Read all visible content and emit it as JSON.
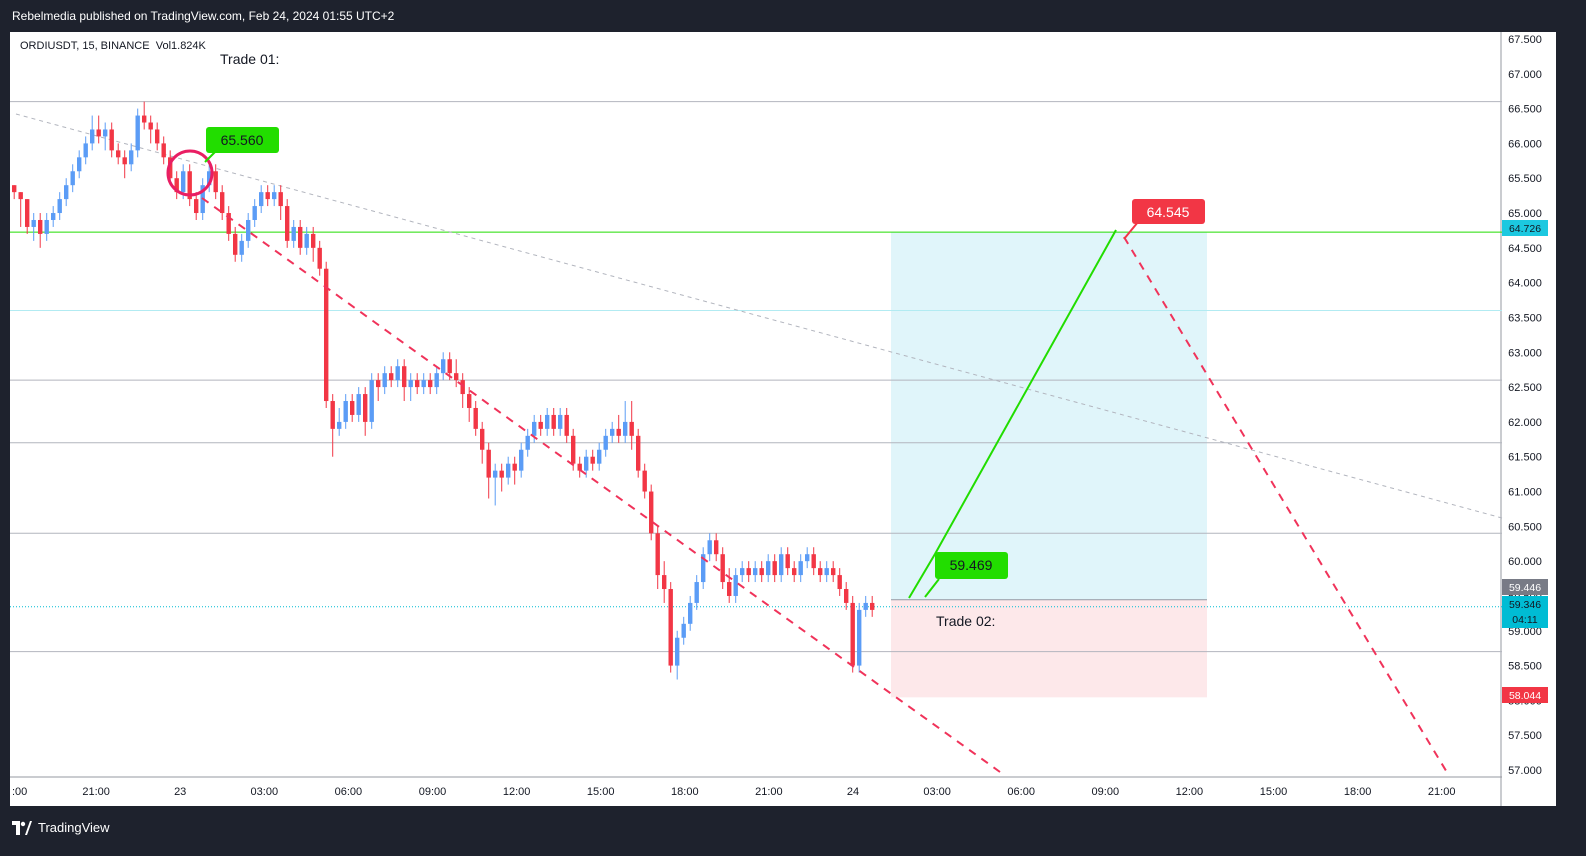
{
  "header": {
    "published": "Rebelmedia published on TradingView.com, Feb 24, 2024 01:55 UTC+2"
  },
  "symbol": {
    "name": "ORDIUSDT, 15, BINANCE",
    "vol_label": "Vol",
    "vol_value": "1.824K"
  },
  "annotations": {
    "trade1": "Trade 01:",
    "trade2": "Trade 02:",
    "label_65560": "65.560",
    "label_59469": "59.469",
    "label_64545": "64.545"
  },
  "price_axis": {
    "ticks": [
      "67.500",
      "67.000",
      "66.500",
      "66.000",
      "65.500",
      "65.000",
      "64.500",
      "64.000",
      "63.500",
      "63.000",
      "62.500",
      "62.000",
      "61.500",
      "61.000",
      "60.500",
      "60.000",
      "59.500",
      "59.000",
      "58.500",
      "58.000",
      "57.500",
      "57.000"
    ],
    "badges": {
      "green_level": "64.726",
      "gray_level": "59.446",
      "current": "59.346",
      "countdown": "04:11",
      "stop": "58.044"
    }
  },
  "time_axis": {
    "ticks": [
      ":00",
      "21:00",
      "23",
      "03:00",
      "06:00",
      "09:00",
      "12:00",
      "15:00",
      "18:00",
      "21:00",
      "24",
      "03:00",
      "06:00",
      "09:00",
      "12:00",
      "15:00",
      "18:00",
      "21:00"
    ]
  },
  "brand": {
    "name": "TradingView"
  },
  "colors": {
    "up": "#5b9cf6",
    "down": "#f23645",
    "accent_green": "#22dd00",
    "target_zone": "#e0f5fa",
    "stop_zone": "#fde8ea"
  },
  "chart_data": {
    "type": "candlestick",
    "candles": [
      [
        65.4,
        65.3,
        65.4,
        65.2
      ],
      [
        65.3,
        65.2,
        65.3,
        64.8
      ],
      [
        65.2,
        64.8,
        65.2,
        64.7
      ],
      [
        64.8,
        64.9,
        65.0,
        64.6
      ],
      [
        64.9,
        64.7,
        65.0,
        64.5
      ],
      [
        64.7,
        64.9,
        65.0,
        64.6
      ],
      [
        64.9,
        65.0,
        65.1,
        64.8
      ],
      [
        65.0,
        65.2,
        65.3,
        64.9
      ],
      [
        65.2,
        65.4,
        65.5,
        65.1
      ],
      [
        65.4,
        65.6,
        65.7,
        65.3
      ],
      [
        65.6,
        65.8,
        65.9,
        65.5
      ],
      [
        65.8,
        66.0,
        66.1,
        65.7
      ],
      [
        66.0,
        66.2,
        66.4,
        65.9
      ],
      [
        66.2,
        66.1,
        66.4,
        66.0
      ],
      [
        66.1,
        66.2,
        66.3,
        65.9
      ],
      [
        66.2,
        65.9,
        66.3,
        65.8
      ],
      [
        65.9,
        65.8,
        66.0,
        65.7
      ],
      [
        65.8,
        65.7,
        65.9,
        65.5
      ],
      [
        65.7,
        65.9,
        66.0,
        65.6
      ],
      [
        65.9,
        66.4,
        66.5,
        65.8
      ],
      [
        66.4,
        66.3,
        66.6,
        66.2
      ],
      [
        66.3,
        66.2,
        66.4,
        66.0
      ],
      [
        66.2,
        66.0,
        66.3,
        65.9
      ],
      [
        66.0,
        65.8,
        66.1,
        65.7
      ],
      [
        65.8,
        65.5,
        65.9,
        65.4
      ],
      [
        65.5,
        65.3,
        65.6,
        65.2
      ],
      [
        65.3,
        65.6,
        65.7,
        65.2
      ],
      [
        65.6,
        65.2,
        65.7,
        65.1
      ],
      [
        65.2,
        65.0,
        65.3,
        64.9
      ],
      [
        65.0,
        65.4,
        65.5,
        64.9
      ],
      [
        65.4,
        65.6,
        65.7,
        65.3
      ],
      [
        65.6,
        65.3,
        65.7,
        65.2
      ],
      [
        65.3,
        65.0,
        65.4,
        64.9
      ],
      [
        65.0,
        64.7,
        65.1,
        64.6
      ],
      [
        64.7,
        64.4,
        64.8,
        64.3
      ],
      [
        64.4,
        64.6,
        64.7,
        64.3
      ],
      [
        64.6,
        64.9,
        65.0,
        64.5
      ],
      [
        64.9,
        65.1,
        65.2,
        64.8
      ],
      [
        65.1,
        65.3,
        65.4,
        65.0
      ],
      [
        65.3,
        65.2,
        65.4,
        65.1
      ],
      [
        65.2,
        65.3,
        65.4,
        65.1
      ],
      [
        65.3,
        65.1,
        65.4,
        64.9
      ],
      [
        65.1,
        64.6,
        65.2,
        64.5
      ],
      [
        64.6,
        64.8,
        64.9,
        64.5
      ],
      [
        64.8,
        64.5,
        64.9,
        64.4
      ],
      [
        64.5,
        64.7,
        64.8,
        64.4
      ],
      [
        64.7,
        64.5,
        64.8,
        64.3
      ],
      [
        64.5,
        64.2,
        64.6,
        64.1
      ],
      [
        64.2,
        62.3,
        64.3,
        62.2
      ],
      [
        62.3,
        61.9,
        62.4,
        61.5
      ],
      [
        61.9,
        62.0,
        62.2,
        61.8
      ],
      [
        62.0,
        62.3,
        62.4,
        61.9
      ],
      [
        62.3,
        62.1,
        62.4,
        62.0
      ],
      [
        62.1,
        62.4,
        62.5,
        62.0
      ],
      [
        62.4,
        62.0,
        62.5,
        61.8
      ],
      [
        62.0,
        62.6,
        62.7,
        61.9
      ],
      [
        62.6,
        62.5,
        62.7,
        62.3
      ],
      [
        62.5,
        62.7,
        62.8,
        62.4
      ],
      [
        62.7,
        62.6,
        62.8,
        62.5
      ],
      [
        62.6,
        62.8,
        62.9,
        62.5
      ],
      [
        62.8,
        62.5,
        62.9,
        62.3
      ],
      [
        62.5,
        62.6,
        62.7,
        62.3
      ],
      [
        62.6,
        62.5,
        62.7,
        62.4
      ],
      [
        62.5,
        62.6,
        62.7,
        62.4
      ],
      [
        62.6,
        62.5,
        62.7,
        62.4
      ],
      [
        62.5,
        62.7,
        62.8,
        62.4
      ],
      [
        62.7,
        62.9,
        63.0,
        62.6
      ],
      [
        62.9,
        62.7,
        63.0,
        62.6
      ],
      [
        62.7,
        62.6,
        62.9,
        62.5
      ],
      [
        62.6,
        62.4,
        62.7,
        62.2
      ],
      [
        62.4,
        62.2,
        62.5,
        62.0
      ],
      [
        62.2,
        61.9,
        62.3,
        61.8
      ],
      [
        61.9,
        61.6,
        62.0,
        61.4
      ],
      [
        61.6,
        61.2,
        61.7,
        60.9
      ],
      [
        61.2,
        61.3,
        61.4,
        60.8
      ],
      [
        61.3,
        61.2,
        61.4,
        61.0
      ],
      [
        61.2,
        61.4,
        61.5,
        61.1
      ],
      [
        61.4,
        61.3,
        61.5,
        61.1
      ],
      [
        61.3,
        61.6,
        61.7,
        61.2
      ],
      [
        61.6,
        61.8,
        61.9,
        61.5
      ],
      [
        61.8,
        62.0,
        62.1,
        61.7
      ],
      [
        62.0,
        61.9,
        62.1,
        61.8
      ],
      [
        61.9,
        62.1,
        62.2,
        61.8
      ],
      [
        62.1,
        61.9,
        62.2,
        61.8
      ],
      [
        61.9,
        62.1,
        62.2,
        61.8
      ],
      [
        62.1,
        61.8,
        62.2,
        61.7
      ],
      [
        61.8,
        61.4,
        61.9,
        61.3
      ],
      [
        61.4,
        61.3,
        61.5,
        61.2
      ],
      [
        61.3,
        61.5,
        61.6,
        61.2
      ],
      [
        61.5,
        61.4,
        61.6,
        61.3
      ],
      [
        61.4,
        61.6,
        61.7,
        61.3
      ],
      [
        61.6,
        61.8,
        61.9,
        61.5
      ],
      [
        61.8,
        61.9,
        62.0,
        61.7
      ],
      [
        61.9,
        61.8,
        62.1,
        61.7
      ],
      [
        61.8,
        62.0,
        62.3,
        61.7
      ],
      [
        62.0,
        61.8,
        62.3,
        61.6
      ],
      [
        61.8,
        61.3,
        61.9,
        61.2
      ],
      [
        61.3,
        61.0,
        61.4,
        60.9
      ],
      [
        61.0,
        60.4,
        61.1,
        60.3
      ],
      [
        60.4,
        59.8,
        60.5,
        59.6
      ],
      [
        59.8,
        59.6,
        60.0,
        59.4
      ],
      [
        59.6,
        58.5,
        59.7,
        58.4
      ],
      [
        58.5,
        58.9,
        59.0,
        58.3
      ],
      [
        58.9,
        59.1,
        59.2,
        58.8
      ],
      [
        59.1,
        59.4,
        59.5,
        59.0
      ],
      [
        59.4,
        59.7,
        59.8,
        59.3
      ],
      [
        59.7,
        60.1,
        60.2,
        59.6
      ],
      [
        60.1,
        60.3,
        60.4,
        60.0
      ],
      [
        60.3,
        60.1,
        60.4,
        60.0
      ],
      [
        60.1,
        59.7,
        60.2,
        59.6
      ],
      [
        59.7,
        59.5,
        59.9,
        59.4
      ],
      [
        59.5,
        59.8,
        59.9,
        59.4
      ],
      [
        59.8,
        59.9,
        60.0,
        59.7
      ],
      [
        59.9,
        59.8,
        60.0,
        59.7
      ],
      [
        59.8,
        59.9,
        60.0,
        59.7
      ],
      [
        59.9,
        59.8,
        60.0,
        59.7
      ],
      [
        59.8,
        60.0,
        60.1,
        59.7
      ],
      [
        60.0,
        59.8,
        60.1,
        59.7
      ],
      [
        59.8,
        60.1,
        60.2,
        59.7
      ],
      [
        60.1,
        59.9,
        60.2,
        59.8
      ],
      [
        59.9,
        59.8,
        60.0,
        59.7
      ],
      [
        59.8,
        60.0,
        60.1,
        59.7
      ],
      [
        60.0,
        60.1,
        60.2,
        59.9
      ],
      [
        60.1,
        59.9,
        60.2,
        59.8
      ],
      [
        59.9,
        59.8,
        60.0,
        59.7
      ],
      [
        59.8,
        59.9,
        60.0,
        59.7
      ],
      [
        59.9,
        59.8,
        60.0,
        59.7
      ],
      [
        59.8,
        59.6,
        59.9,
        59.5
      ],
      [
        59.6,
        59.4,
        59.7,
        59.3
      ],
      [
        59.4,
        58.5,
        59.5,
        58.4
      ],
      [
        58.5,
        59.3,
        59.4,
        58.4
      ],
      [
        59.3,
        59.4,
        59.5,
        59.2
      ],
      [
        59.4,
        59.3,
        59.5,
        59.2
      ]
    ],
    "ylim": [
      56.9,
      67.6
    ],
    "horizontal_levels": [
      66.6,
      64.726,
      63.6,
      62.6,
      61.7,
      60.4,
      58.7
    ],
    "current_price": 59.346,
    "position": {
      "entry": 59.446,
      "target": 64.726,
      "stop": 58.044
    }
  }
}
